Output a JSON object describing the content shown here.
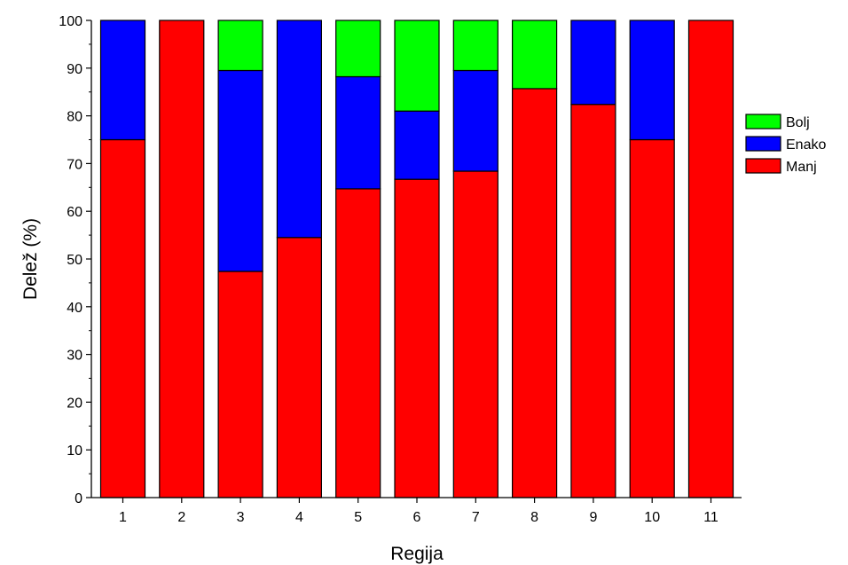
{
  "chart_data": {
    "type": "bar",
    "stacked": true,
    "title": "",
    "xlabel": "Regija",
    "ylabel": "Delež (%)",
    "ylim": [
      0,
      100
    ],
    "yticks": [
      0,
      10,
      20,
      30,
      40,
      50,
      60,
      70,
      80,
      90,
      100
    ],
    "categories": [
      "1",
      "2",
      "3",
      "4",
      "5",
      "6",
      "7",
      "8",
      "9",
      "10",
      "11"
    ],
    "series": [
      {
        "name": "Manj",
        "color": "#ff0000",
        "values": [
          75,
          100,
          47.4,
          54.5,
          64.7,
          66.7,
          68.4,
          85.7,
          82.4,
          75,
          100
        ]
      },
      {
        "name": "Enako",
        "color": "#0000ff",
        "values": [
          25,
          0,
          42.1,
          45.5,
          23.5,
          14.3,
          21.1,
          0,
          17.6,
          25,
          0
        ]
      },
      {
        "name": "Bolj",
        "color": "#00ff00",
        "values": [
          0,
          0,
          10.5,
          0,
          11.8,
          19,
          10.5,
          14.3,
          0,
          0,
          0
        ]
      }
    ],
    "legend": {
      "position": "right",
      "order": [
        "Bolj",
        "Enako",
        "Manj"
      ]
    },
    "grid": false
  }
}
